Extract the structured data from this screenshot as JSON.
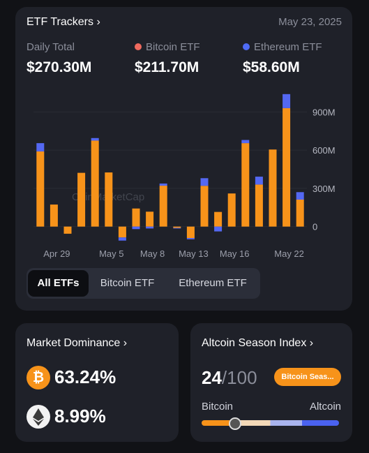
{
  "header": {
    "title": "ETF Trackers",
    "date": "May 23, 2025",
    "totals": [
      {
        "label": "Daily Total",
        "value": "$270.30M"
      },
      {
        "label": "Bitcoin ETF",
        "value": "$211.70M",
        "dot_color": "#ef6a5e"
      },
      {
        "label": "Ethereum ETF",
        "value": "$58.60M",
        "dot_color": "#4f6cf5"
      }
    ]
  },
  "chart_data": {
    "type": "bar",
    "stacked": true,
    "watermark": "CoinMarketCap",
    "categories": [
      null,
      "Apr 29",
      null,
      null,
      null,
      "May 5",
      null,
      null,
      "May 8",
      null,
      null,
      "May 13",
      null,
      null,
      "May 16",
      null,
      null,
      null,
      "May 22",
      null
    ],
    "series": [
      {
        "name": "Bitcoin ETF",
        "color": "#f7931a",
        "values": [
          590,
          173,
          -56,
          422,
          675,
          425,
          -85,
          142,
          117,
          321,
          -10,
          -90,
          320,
          115,
          260,
          655,
          330,
          605,
          930,
          211.7
        ]
      },
      {
        "name": "Ethereum ETF",
        "color": "#5468f2",
        "values": [
          65,
          0,
          0,
          0,
          20,
          0,
          -25,
          -20,
          -15,
          17,
          -5,
          -10,
          60,
          -38,
          0,
          25,
          62,
          0,
          110,
          58.6
        ]
      }
    ],
    "ylim": [
      -150,
      1050
    ],
    "yticks": [
      0,
      {
        "value": 300,
        "label": "300M"
      },
      {
        "value": 600,
        "label": "600M"
      },
      {
        "value": 900,
        "label": "900M"
      }
    ],
    "grid": true
  },
  "tabs": [
    "All ETFs",
    "Bitcoin ETF",
    "Ethereum ETF"
  ],
  "dominance": {
    "title": "Market Dominance",
    "items": [
      "63.24%",
      "8.99%"
    ]
  },
  "altcoin": {
    "title": "Altcoin Season Index",
    "index": "24",
    "max": "/100",
    "badge": "Bitcoin Seas...",
    "left": "Bitcoin",
    "right": "Altcoin"
  }
}
